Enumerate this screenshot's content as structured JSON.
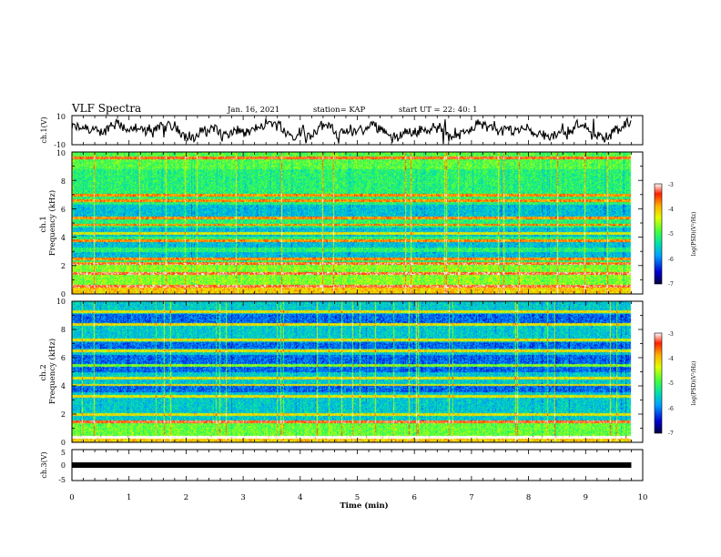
{
  "header": {
    "title": "VLF Spectra",
    "date": "Jan. 16, 2021",
    "station": "station= KAP",
    "start": "start UT =  22: 40: 1"
  },
  "chart_data": [
    {
      "type": "line",
      "name": "ch1-waveform",
      "ylabel": "ch.1(V)",
      "ylim": [
        -10,
        10
      ],
      "yticks": [
        "10",
        "-10"
      ],
      "xlim": [
        0,
        10
      ],
      "x_end": 9.8,
      "grid": false
    },
    {
      "type": "heatmap",
      "name": "ch1-spectrogram",
      "ylabel": "ch.1\nFrequency (kHz)",
      "ylim": [
        0,
        10
      ],
      "yticks": [
        "0",
        "2",
        "4",
        "6",
        "8",
        "10"
      ],
      "xlim": [
        0,
        10
      ],
      "x_end": 9.8,
      "strong_lines_khz": [
        0.6,
        1.5,
        2.2,
        2.5,
        3.8,
        4.3,
        4.9,
        5.4,
        6.6,
        7.0,
        9.6
      ],
      "quiet_bands_khz": [
        [
          2.6,
          3.0
        ],
        [
          3.3,
          3.7
        ],
        [
          4.1,
          4.7
        ],
        [
          5.5,
          6.3
        ]
      ],
      "colorbar": {
        "label": "log(PSD)(V²/Hz)",
        "range": [
          -7,
          -3
        ],
        "ticks": [
          "-3",
          "-4",
          "-5",
          "-6",
          "-7"
        ]
      }
    },
    {
      "type": "heatmap",
      "name": "ch2-spectrogram",
      "ylabel": "ch.2\nFrequency (kHz)",
      "ylim": [
        0,
        10
      ],
      "yticks": [
        "0",
        "2",
        "4",
        "6",
        "8",
        "10"
      ],
      "xlim": [
        0,
        10
      ],
      "x_end": 9.8,
      "strong_lines_khz": [
        0.4,
        1.5,
        2.0,
        3.3,
        4.1,
        4.6,
        5.5,
        6.5,
        7.3,
        8.4,
        9.3
      ],
      "quiet_bands_khz": [
        [
          3.6,
          4.0
        ],
        [
          5.0,
          6.2
        ],
        [
          8.5,
          9.1
        ],
        [
          6.7,
          7.1
        ]
      ],
      "colorbar": {
        "label": "log(PSD)(V²/Hz)",
        "range": [
          -7,
          -3
        ],
        "ticks": [
          "-3",
          "-4",
          "-5",
          "-6",
          "-7"
        ]
      }
    },
    {
      "type": "line",
      "name": "ch3-signal",
      "ylabel": "ch.3(V)",
      "ylim": [
        -5,
        5
      ],
      "yticks": [
        "5",
        "0",
        "-5"
      ],
      "xlim": [
        0,
        10
      ],
      "x_end": 9.8,
      "xlabel": "Time (min)",
      "xticks": [
        "0",
        "1",
        "2",
        "3",
        "4",
        "5",
        "6",
        "7",
        "8",
        "9",
        "10"
      ],
      "values": [
        [
          0,
          0
        ],
        [
          9.8,
          0
        ]
      ]
    }
  ]
}
